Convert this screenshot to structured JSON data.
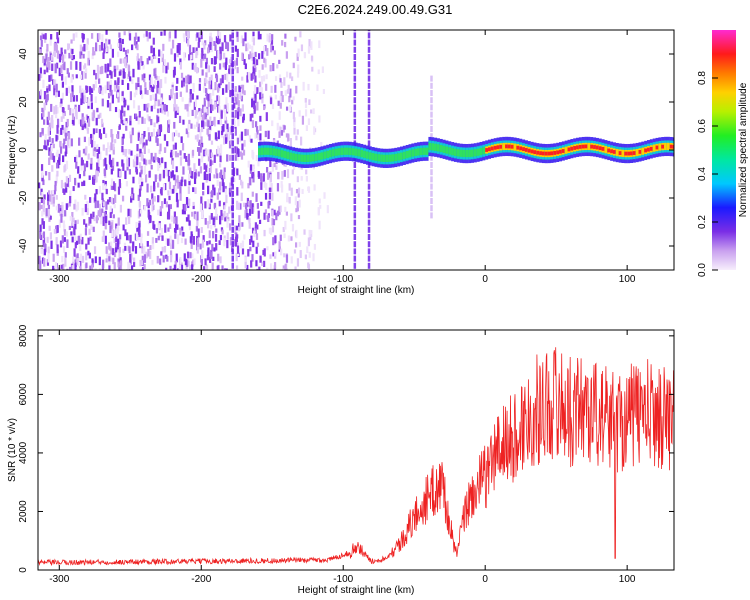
{
  "page": {
    "title": "C2E6.2024.249.00.49.G31"
  },
  "colors": {
    "snr_line": "#ee2222",
    "axis": "#000000"
  },
  "chart_data": [
    {
      "type": "heatmap",
      "title": "C2E6.2024.249.00.49.G31",
      "xlabel": "Height of straight line (km)",
      "ylabel": "Frequency (Hz)",
      "xlim": [
        -315,
        133
      ],
      "ylim": [
        -50,
        50
      ],
      "x_ticks": [
        -300,
        -200,
        -100,
        0,
        100
      ],
      "y_ticks": [
        -40,
        -20,
        0,
        20,
        40
      ],
      "colorbar": {
        "label": "Normalized spectral amplitude",
        "range": [
          0,
          1
        ],
        "ticks": [
          "0.0",
          "0.2",
          "0.4",
          "0.6",
          "0.8"
        ]
      },
      "features": {
        "noise_region_km": [
          -315,
          -120
        ],
        "spike_lines_km": [
          -178,
          -92,
          -82,
          -38
        ],
        "dominant_frequency_hz": 0
      }
    },
    {
      "type": "line",
      "xlabel": "Height of straight line (km)",
      "ylabel": "SNR (10 * v/v)",
      "xlim": [
        -315,
        133
      ],
      "ylim": [
        0,
        8200
      ],
      "x_ticks": [
        -300,
        -200,
        -100,
        0,
        100
      ],
      "y_ticks": [
        0,
        2000,
        4000,
        6000,
        8000
      ],
      "series": [
        {
          "approx_profile": {
            "x": [
              -315,
              -200,
              -150,
              -110,
              -95,
              -90,
              -80,
              -70,
              -60,
              -50,
              -40,
              -30,
              -25,
              -20,
              -15,
              -10,
              0,
              10,
              20,
              30,
              40,
              50,
              60,
              70,
              80,
              90,
              100,
              110,
              120,
              133
            ],
            "y": [
              250,
              300,
              320,
              350,
              600,
              800,
              300,
              400,
              900,
              1800,
              2500,
              3000,
              1500,
              500,
              1800,
              2500,
              3200,
              4200,
              4500,
              5200,
              5600,
              5800,
              5400,
              5600,
              5300,
              5100,
              5200,
              5400,
              5300,
              5200
            ]
          }
        }
      ]
    }
  ]
}
